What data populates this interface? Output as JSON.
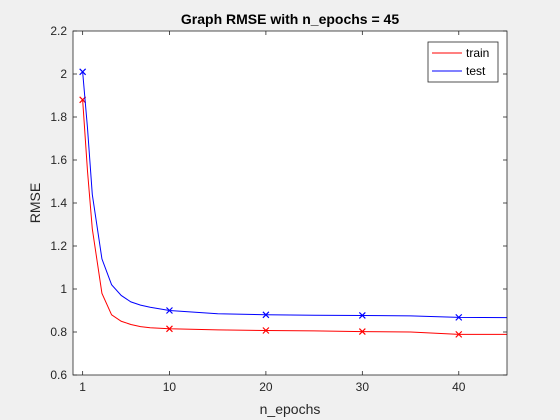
{
  "chart_data": {
    "type": "line",
    "title": "Graph RMSE with n_epochs = 45",
    "xlabel": "n_epochs",
    "ylabel": "RMSE",
    "xlim": [
      0,
      45
    ],
    "ylim": [
      0.6,
      2.2
    ],
    "xticks": [
      1,
      10,
      20,
      30,
      40
    ],
    "yticks": [
      0.6,
      0.8,
      1,
      1.2,
      1.4,
      1.6,
      1.8,
      2,
      2.2
    ],
    "ytick_labels": [
      "0.6",
      "0.8",
      "1",
      "1.2",
      "1.4",
      "1.6",
      "1.8",
      "2",
      "2.2"
    ],
    "grid": false,
    "legend_position": "top-right",
    "marker_x": [
      1,
      10,
      20,
      30,
      40
    ],
    "series": [
      {
        "name": "train",
        "color": "#ff0000",
        "x": [
          1,
          1.5,
          2,
          3,
          4,
          5,
          6,
          7,
          8,
          10,
          15,
          20,
          25,
          30,
          35,
          40,
          45
        ],
        "values": [
          1.88,
          1.55,
          1.28,
          0.98,
          0.88,
          0.85,
          0.835,
          0.825,
          0.82,
          0.815,
          0.81,
          0.807,
          0.805,
          0.802,
          0.8,
          0.789,
          0.789
        ]
      },
      {
        "name": "test",
        "color": "#0000ff",
        "x": [
          1,
          1.5,
          2,
          3,
          4,
          5,
          6,
          7,
          8,
          10,
          15,
          20,
          25,
          30,
          35,
          40,
          45
        ],
        "values": [
          2.01,
          1.75,
          1.44,
          1.14,
          1.02,
          0.97,
          0.94,
          0.925,
          0.915,
          0.9,
          0.885,
          0.88,
          0.878,
          0.877,
          0.875,
          0.868,
          0.867
        ]
      }
    ]
  }
}
